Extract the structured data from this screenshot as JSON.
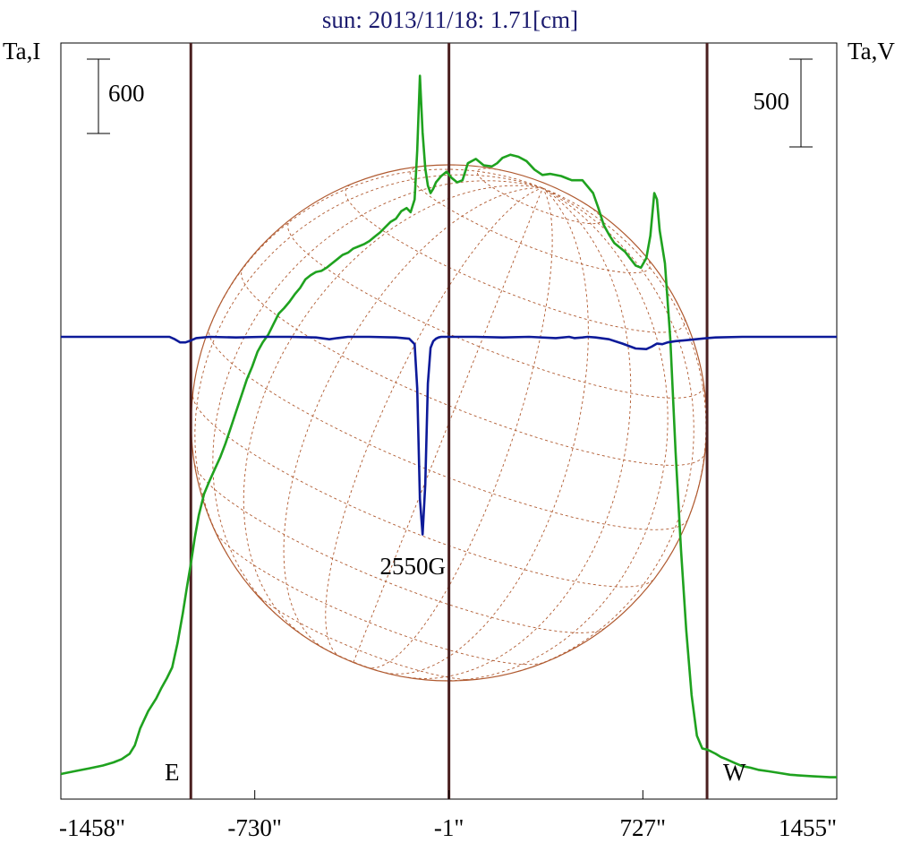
{
  "chart_data": {
    "type": "line",
    "title": "sun: 2013/11/18: 1.71[cm]",
    "ylabel_left": "Ta,I",
    "ylabel_right": "Ta,V",
    "scale_bar_left": "600",
    "scale_bar_right": "500",
    "xlim": [
      -1458,
      1455
    ],
    "x_ticks": [
      -1458,
      -730,
      -1,
      727,
      1455
    ],
    "x_tick_labels": [
      "-1458\"",
      "-730\"",
      "-1\"",
      "727\"",
      "1455\""
    ],
    "limb_labels": {
      "east": "E",
      "west": "W"
    },
    "limb_positions": [
      -970,
      -1,
      968
    ],
    "annotation": {
      "text": "2550G",
      "x": -110
    },
    "colors": {
      "intensity": "#1fa21f",
      "polarization": "#0d1a99",
      "limb_lines": "#4a1f1f",
      "disk": "#b05a30",
      "title": "#1a1a6e"
    },
    "series": [
      {
        "name": "Ta,I",
        "x": [
          -1458,
          -1440,
          -1400,
          -1350,
          -1300,
          -1260,
          -1230,
          -1200,
          -1180,
          -1160,
          -1130,
          -1100,
          -1080,
          -1060,
          -1040,
          -1020,
          -1000,
          -985,
          -970,
          -955,
          -940,
          -920,
          -900,
          -880,
          -860,
          -840,
          -820,
          -800,
          -780,
          -760,
          -740,
          -720,
          -700,
          -680,
          -660,
          -640,
          -620,
          -600,
          -580,
          -560,
          -540,
          -520,
          -500,
          -480,
          -460,
          -440,
          -420,
          -400,
          -380,
          -360,
          -340,
          -320,
          -300,
          -280,
          -260,
          -240,
          -220,
          -200,
          -180,
          -160,
          -145,
          -130,
          -120,
          -110,
          -100,
          -90,
          -80,
          -70,
          -60,
          -50,
          -30,
          -10,
          10,
          30,
          50,
          70,
          100,
          130,
          160,
          180,
          200,
          230,
          260,
          290,
          320,
          350,
          380,
          420,
          460,
          500,
          540,
          560,
          580,
          600,
          620,
          660,
          700,
          720,
          740,
          755,
          770,
          780,
          790,
          810,
          830,
          850,
          870,
          890,
          910,
          930,
          950,
          968,
          985,
          1000,
          1020,
          1040,
          1070,
          1100,
          1130,
          1160,
          1200,
          1240,
          1280,
          1320,
          1360,
          1400,
          1430,
          1455
        ],
        "y": [
          25,
          30,
          40,
          52,
          65,
          80,
          95,
          120,
          160,
          240,
          320,
          380,
          430,
          475,
          525,
          640,
          780,
          900,
          1010,
          1135,
          1240,
          1340,
          1400,
          1455,
          1510,
          1575,
          1650,
          1725,
          1800,
          1875,
          1935,
          2005,
          2050,
          2085,
          2135,
          2185,
          2210,
          2240,
          2275,
          2305,
          2345,
          2365,
          2380,
          2385,
          2400,
          2420,
          2440,
          2460,
          2470,
          2490,
          2500,
          2510,
          2525,
          2545,
          2565,
          2590,
          2615,
          2630,
          2665,
          2680,
          2660,
          2720,
          2950,
          3300,
          3035,
          2865,
          2785,
          2750,
          2770,
          2800,
          2830,
          2850,
          2820,
          2800,
          2810,
          2890,
          2910,
          2880,
          2875,
          2890,
          2915,
          2930,
          2920,
          2900,
          2860,
          2835,
          2840,
          2830,
          2810,
          2810,
          2750,
          2680,
          2600,
          2555,
          2515,
          2475,
          2410,
          2400,
          2445,
          2550,
          2750,
          2720,
          2575,
          2420,
          2065,
          1535,
          1080,
          700,
          395,
          205,
          145,
          140,
          130,
          120,
          105,
          95,
          78,
          62,
          55,
          45,
          38,
          30,
          22,
          18,
          15,
          12,
          10,
          10
        ]
      },
      {
        "name": "Ta,V",
        "x": [
          -1458,
          -1300,
          -1100,
          -1050,
          -1030,
          -1010,
          -990,
          -970,
          -950,
          -900,
          -800,
          -700,
          -600,
          -500,
          -450,
          -420,
          -380,
          -300,
          -200,
          -150,
          -130,
          -120,
          -110,
          -100,
          -90,
          -80,
          -70,
          -60,
          -50,
          -40,
          -30,
          -10,
          50,
          100,
          200,
          300,
          400,
          450,
          470,
          500,
          520,
          550,
          600,
          650,
          700,
          740,
          760,
          780,
          800,
          820,
          850,
          900,
          968,
          1000,
          1100,
          1200,
          1300,
          1400,
          1455
        ],
        "y": [
          0,
          0,
          0,
          0,
          -20,
          -45,
          -45,
          -30,
          -10,
          0,
          -5,
          0,
          0,
          -5,
          -20,
          -10,
          0,
          0,
          -5,
          -15,
          -60,
          -420,
          -1320,
          -1610,
          -1200,
          -380,
          -90,
          -35,
          -15,
          -5,
          0,
          0,
          0,
          0,
          -5,
          0,
          -10,
          0,
          -10,
          -5,
          0,
          -5,
          -20,
          -55,
          -95,
          -100,
          -80,
          -55,
          -60,
          -45,
          -35,
          -25,
          -10,
          -5,
          0,
          0,
          0,
          0,
          0
        ]
      }
    ]
  }
}
